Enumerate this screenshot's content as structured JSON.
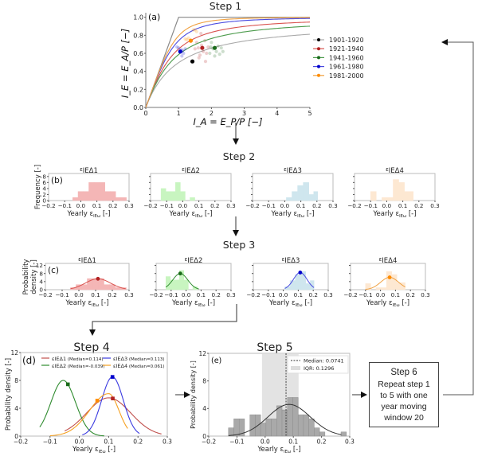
{
  "steps": {
    "step1": "Step 1",
    "step2": "Step 2",
    "step3": "Step 3",
    "step4": "Step 4",
    "step5": "Step 5",
    "step6": {
      "title": "Step 6",
      "lines": [
        "Repeat step 1",
        "to 5 with one",
        "year moving",
        "window 20"
      ]
    }
  },
  "chart_data": [
    {
      "id": "a",
      "panel_label": "(a)",
      "type": "line",
      "title": "Step 1",
      "xlabel": "I_A = E_P/P [−]",
      "ylabel": "I_E = E_A/P [−]",
      "xlim": [
        0,
        5
      ],
      "ylim": [
        0,
        1.05
      ],
      "xticks": [
        "0",
        "1",
        "2",
        "3",
        "4",
        "5"
      ],
      "yticks": [
        "0.0",
        "0.2",
        "0.4",
        "0.6",
        "0.8",
        "1.0"
      ],
      "legend_position": "right-outside",
      "limit_line": {
        "x": [
          0,
          1,
          5
        ],
        "y": [
          0,
          1,
          1
        ],
        "color": "#888888"
      },
      "series": [
        {
          "name": "1901-1920",
          "color": "#000000",
          "curve_color": "#aaaaaa",
          "omega": 1.7,
          "median_point": [
            1.42,
            0.51
          ],
          "scatter": []
        },
        {
          "name": "1921-1940",
          "color": "#b22222",
          "curve_color": "#d9534f",
          "omega": 2.3,
          "median_point": [
            1.72,
            0.66
          ],
          "scatter": [
            [
              1.55,
              0.72
            ],
            [
              1.6,
              0.66
            ],
            [
              1.65,
              0.58
            ],
            [
              1.7,
              0.69
            ],
            [
              1.75,
              0.62
            ],
            [
              1.8,
              0.74
            ],
            [
              1.62,
              0.55
            ],
            [
              1.82,
              0.51
            ],
            [
              1.9,
              0.67
            ],
            [
              1.5,
              0.65
            ],
            [
              1.68,
              0.82
            ],
            [
              1.85,
              0.6
            ]
          ]
        },
        {
          "name": "1941-1960",
          "color": "#1a6b1a",
          "curve_color": "#4a9a4a",
          "omega": 2.0,
          "median_point": [
            2.1,
            0.66
          ],
          "scatter": [
            [
              1.95,
              0.6
            ],
            [
              2.0,
              0.72
            ],
            [
              2.05,
              0.65
            ],
            [
              2.15,
              0.62
            ],
            [
              2.2,
              0.68
            ],
            [
              2.25,
              0.59
            ],
            [
              2.1,
              0.57
            ],
            [
              2.3,
              0.66
            ],
            [
              2.35,
              0.62
            ],
            [
              1.98,
              0.67
            ]
          ]
        },
        {
          "name": "1961-1980",
          "color": "#0000cc",
          "curve_color": "#4a4ae0",
          "omega": 3.0,
          "median_point": [
            1.05,
            0.62
          ],
          "scatter": [
            [
              0.95,
              0.67
            ],
            [
              1.0,
              0.66
            ],
            [
              1.1,
              0.57
            ],
            [
              1.15,
              0.6
            ],
            [
              1.08,
              0.64
            ],
            [
              1.2,
              0.65
            ],
            [
              1.12,
              0.63
            ]
          ]
        },
        {
          "name": "1981-2000",
          "color": "#ff8c00",
          "curve_color": "#f0a040",
          "omega": 3.7,
          "median_point": [
            1.37,
            0.74
          ],
          "scatter": [
            [
              1.2,
              0.76
            ],
            [
              1.3,
              0.77
            ],
            [
              1.45,
              0.86
            ],
            [
              1.5,
              0.86
            ],
            [
              1.55,
              0.84
            ],
            [
              1.25,
              0.75
            ]
          ]
        }
      ]
    },
    {
      "id": "b",
      "panel_label": "(b)",
      "type": "bar",
      "title": "Step 2",
      "ylabel": "Frequency [-]",
      "xlabel": "Yearly ε_IEω [-]",
      "xlim": [
        -0.2,
        0.3
      ],
      "ylim": [
        0,
        9
      ],
      "xticks": [
        "−0.2",
        "−0.1",
        "0.0",
        "0.1",
        "0.2",
        "0.3"
      ],
      "yticks": [
        "0",
        "2",
        "4",
        "6",
        "8"
      ],
      "panels": [
        {
          "title": "εIEΔ1",
          "color": "#f4b6b6",
          "bins": [
            [
              -0.05,
              -0.0167,
              1
            ],
            [
              -0.0167,
              0.0167,
              3
            ],
            [
              0.0167,
              0.05,
              3
            ],
            [
              0.05,
              0.0833,
              6
            ],
            [
              0.0833,
              0.1167,
              6
            ],
            [
              0.1167,
              0.15,
              6
            ],
            [
              0.15,
              0.1833,
              3
            ],
            [
              0.1833,
              0.2167,
              3
            ],
            [
              0.2167,
              0.25,
              1
            ],
            [
              0.25,
              0.2833,
              1
            ]
          ]
        },
        {
          "title": "εIEΔ2",
          "color": "#c8f5c0",
          "bins": [
            [
              -0.135,
              -0.105,
              4
            ],
            [
              -0.105,
              -0.075,
              3
            ],
            [
              -0.075,
              -0.045,
              3
            ],
            [
              -0.045,
              -0.015,
              6
            ],
            [
              -0.015,
              0.015,
              3
            ],
            [
              0.015,
              0.045,
              0
            ],
            [
              0.045,
              0.075,
              1
            ]
          ]
        },
        {
          "title": "εIEΔ3",
          "color": "#cfe6ee",
          "bins": [
            [
              0.01,
              0.045,
              1
            ],
            [
              0.045,
              0.08,
              3
            ],
            [
              0.08,
              0.115,
              5
            ],
            [
              0.115,
              0.15,
              6
            ],
            [
              0.15,
              0.18,
              2
            ],
            [
              0.18,
              0.205,
              3
            ]
          ]
        },
        {
          "title": "εIEΔ4",
          "color": "#fde8d2",
          "bins": [
            [
              -0.1,
              -0.065,
              3
            ],
            [
              -0.065,
              -0.03,
              0
            ],
            [
              -0.03,
              0.005,
              1
            ],
            [
              0.005,
              0.04,
              1
            ],
            [
              0.04,
              0.075,
              7
            ],
            [
              0.075,
              0.11,
              6
            ],
            [
              0.11,
              0.165,
              3
            ]
          ]
        }
      ]
    },
    {
      "id": "c",
      "panel_label": "(c)",
      "type": "bar",
      "title": "Step 3",
      "ylabel": "Probability density [-]",
      "xlabel": "Yearly ε_IEω [-]",
      "xlim": [
        -0.2,
        0.3
      ],
      "ylim": [
        0,
        13
      ],
      "xticks": [
        "−0.2",
        "−0.1",
        "0.0",
        "0.1",
        "0.2",
        "0.3"
      ],
      "yticks": [
        "0",
        "4",
        "8",
        "12"
      ],
      "panels": [
        {
          "title": "εIEΔ1",
          "color": "#f4b6b6",
          "line_color": "#d9534f",
          "point_color": "#b22222",
          "median": 0.114,
          "peak": 5.4,
          "sigma": 0.075,
          "range": [
            -0.05,
            0.28
          ],
          "bins": [
            [
              -0.05,
              -0.0167,
              1
            ],
            [
              -0.0167,
              0.0167,
              2.5
            ],
            [
              0.0167,
              0.05,
              2.5
            ],
            [
              0.05,
              0.0833,
              5.5
            ],
            [
              0.0833,
              0.1167,
              5.5
            ],
            [
              0.1167,
              0.15,
              5.5
            ],
            [
              0.15,
              0.1833,
              2.5
            ],
            [
              0.1833,
              0.2167,
              2.5
            ],
            [
              0.2167,
              0.25,
              1
            ],
            [
              0.25,
              0.2833,
              1
            ]
          ]
        },
        {
          "title": "εIEΔ2",
          "color": "#c8f5c0",
          "line_color": "#2e8b2e",
          "point_color": "#1a6b1a",
          "median": -0.039,
          "peak": 8.0,
          "sigma": 0.05,
          "range": [
            -0.135,
            0.085
          ],
          "bins": [
            [
              -0.135,
              -0.105,
              6.5
            ],
            [
              -0.105,
              -0.075,
              4.8
            ],
            [
              -0.075,
              -0.045,
              4.8
            ],
            [
              -0.045,
              -0.015,
              9.5
            ],
            [
              -0.015,
              0.015,
              4.8
            ],
            [
              0.015,
              0.045,
              0
            ],
            [
              0.045,
              0.075,
              1.5
            ]
          ]
        },
        {
          "title": "εIEΔ3",
          "color": "#cfe6ee",
          "line_color": "#4a4ae0",
          "point_color": "#0000cc",
          "median": 0.113,
          "peak": 8.5,
          "sigma": 0.045,
          "range": [
            0.01,
            0.205
          ],
          "bins": [
            [
              0.01,
              0.045,
              1.5
            ],
            [
              0.045,
              0.08,
              4.5
            ],
            [
              0.08,
              0.115,
              7.5
            ],
            [
              0.115,
              0.15,
              9
            ],
            [
              0.15,
              0.18,
              3
            ],
            [
              0.18,
              0.205,
              4.5
            ]
          ]
        },
        {
          "title": "εIEΔ4",
          "color": "#fde8d2",
          "line_color": "#f0a040",
          "point_color": "#ff8c00",
          "median": 0.061,
          "peak": 6.1,
          "sigma": 0.06,
          "range": [
            -0.1,
            0.165
          ],
          "bins": [
            [
              -0.1,
              -0.065,
              3
            ],
            [
              -0.065,
              -0.03,
              0
            ],
            [
              -0.03,
              0.005,
              1
            ],
            [
              0.005,
              0.04,
              1
            ],
            [
              0.04,
              0.075,
              9
            ],
            [
              0.075,
              0.11,
              7.5
            ],
            [
              0.11,
              0.165,
              3.5
            ]
          ]
        }
      ]
    },
    {
      "id": "d",
      "panel_label": "(d)",
      "type": "line",
      "title": "Step 4",
      "xlabel": "Yearly ε_IEω [-]",
      "ylabel": "Probability density [-]",
      "xlim": [
        -0.2,
        0.3
      ],
      "ylim": [
        0,
        12
      ],
      "xticks": [
        "−0.2",
        "−0.1",
        "0.0",
        "0.1",
        "0.2",
        "0.3"
      ],
      "yticks": [
        "0",
        "4",
        "8",
        "12"
      ],
      "legend_position": "top",
      "series": [
        {
          "name": "εIEΔ1",
          "legend_note": "(Median=0.114)",
          "color": "#c0504d",
          "point_color": "#b22222",
          "mode": 0.1,
          "peak": 5.5,
          "sigma": 0.075,
          "range": [
            -0.05,
            0.28
          ],
          "median": 0.114
        },
        {
          "name": "εIEΔ2",
          "legend_note": "(Median=-0.039)",
          "color": "#2e8b2e",
          "point_color": "#1a6b1a",
          "mode": -0.055,
          "peak": 8.0,
          "sigma": 0.042,
          "range": [
            -0.135,
            0.085
          ],
          "median": -0.039
        },
        {
          "name": "εIEΔ3",
          "legend_note": "(Median=0.113)",
          "color": "#3a3ae0",
          "point_color": "#0000cc",
          "mode": 0.113,
          "peak": 8.5,
          "sigma": 0.037,
          "range": [
            0.01,
            0.205
          ],
          "median": 0.113
        },
        {
          "name": "εIEΔ4",
          "legend_note": "(Median=0.061)",
          "color": "#f5a020",
          "point_color": "#ff8c00",
          "mode": 0.1,
          "peak": 6.1,
          "sigma": 0.065,
          "sigma_right": 0.035,
          "range": [
            -0.1,
            0.165
          ],
          "median": 0.061
        }
      ]
    },
    {
      "id": "e",
      "panel_label": "(e)",
      "type": "bar",
      "title": "Step 5",
      "xlabel": "Yearly ε_IEω [-]",
      "ylabel": "Probability density [-]",
      "xlim": [
        -0.2,
        0.3
      ],
      "ylim": [
        0,
        12
      ],
      "xticks": [
        "−0.2",
        "−0.1",
        "0.0",
        "0.1",
        "0.2",
        "0.3"
      ],
      "yticks": [
        "0",
        "4",
        "8",
        "12"
      ],
      "legend_position": "top-right",
      "median": 0.0741,
      "median_label": "Median: 0.0741",
      "iqr": [
        -0.011,
        0.1186
      ],
      "iqr_label": "IQR: 0.1296",
      "fit": {
        "mode": 0.085,
        "peak": 4.6,
        "sigma": 0.075,
        "range": [
          -0.13,
          0.27
        ]
      },
      "bin_width": 0.019,
      "bins": [
        [
          -0.13,
          1.2
        ],
        [
          -0.111,
          2.5
        ],
        [
          -0.092,
          2.5
        ],
        [
          -0.073,
          0
        ],
        [
          -0.054,
          3.1
        ],
        [
          -0.035,
          3.1
        ],
        [
          -0.016,
          1.9
        ],
        [
          0.003,
          2.5
        ],
        [
          0.022,
          2.5
        ],
        [
          0.041,
          4.4
        ],
        [
          0.06,
          3.8
        ],
        [
          0.079,
          5.6
        ],
        [
          0.098,
          5.6
        ],
        [
          0.117,
          3.1
        ],
        [
          0.136,
          3.1
        ],
        [
          0.155,
          2.5
        ],
        [
          0.174,
          1.2
        ],
        [
          0.193,
          0.6
        ],
        [
          0.212,
          0
        ],
        [
          0.231,
          0
        ],
        [
          0.25,
          0
        ],
        [
          0.269,
          0.6
        ]
      ]
    }
  ]
}
